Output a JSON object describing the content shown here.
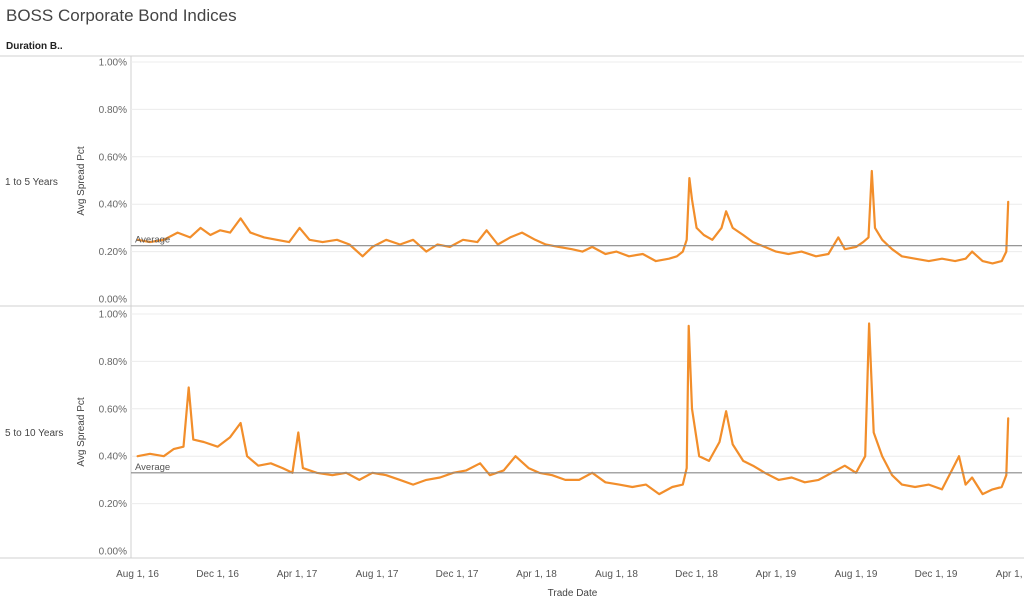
{
  "title": "BOSS Corporate Bond Indices",
  "header_label": "Duration B..",
  "chart_data": {
    "type": "line",
    "title": "BOSS Corporate Bond Indices",
    "xlabel": "Trade Date",
    "ylabel": "Avg Spread Pct",
    "x_ticks": [
      "Aug 1, 16",
      "Dec 1, 16",
      "Apr 1, 17",
      "Aug 1, 17",
      "Dec 1, 17",
      "Apr 1, 18",
      "Aug 1, 18",
      "Dec 1, 18",
      "Apr 1, 19",
      "Aug 1, 19",
      "Dec 1, 19",
      "Apr 1, 20"
    ],
    "xlim": [
      "2016-07-22",
      "2020-04-10"
    ],
    "y_ticks": [
      "0.00%",
      "0.20%",
      "0.40%",
      "0.60%",
      "0.80%",
      "1.00%"
    ],
    "ylim": [
      0,
      1.0
    ],
    "average_label": "Average",
    "line_color": "#f28e2b",
    "grid": true,
    "panels": [
      {
        "name": "1 to 5 Years",
        "average": 0.225,
        "points": [
          [
            "2016-08-01",
            0.25
          ],
          [
            "2016-08-20",
            0.24
          ],
          [
            "2016-09-10",
            0.25
          ],
          [
            "2016-10-01",
            0.28
          ],
          [
            "2016-10-20",
            0.26
          ],
          [
            "2016-11-05",
            0.3
          ],
          [
            "2016-11-20",
            0.27
          ],
          [
            "2016-12-05",
            0.29
          ],
          [
            "2016-12-20",
            0.28
          ],
          [
            "2017-01-05",
            0.34
          ],
          [
            "2017-01-20",
            0.28
          ],
          [
            "2017-02-10",
            0.26
          ],
          [
            "2017-03-01",
            0.25
          ],
          [
            "2017-03-20",
            0.24
          ],
          [
            "2017-04-05",
            0.3
          ],
          [
            "2017-04-20",
            0.25
          ],
          [
            "2017-05-10",
            0.24
          ],
          [
            "2017-06-01",
            0.25
          ],
          [
            "2017-06-20",
            0.23
          ],
          [
            "2017-07-10",
            0.18
          ],
          [
            "2017-07-25",
            0.22
          ],
          [
            "2017-08-15",
            0.25
          ],
          [
            "2017-09-05",
            0.23
          ],
          [
            "2017-09-25",
            0.25
          ],
          [
            "2017-10-15",
            0.2
          ],
          [
            "2017-11-01",
            0.23
          ],
          [
            "2017-11-20",
            0.22
          ],
          [
            "2017-12-10",
            0.25
          ],
          [
            "2018-01-01",
            0.24
          ],
          [
            "2018-01-15",
            0.29
          ],
          [
            "2018-02-01",
            0.23
          ],
          [
            "2018-02-20",
            0.26
          ],
          [
            "2018-03-10",
            0.28
          ],
          [
            "2018-03-30",
            0.25
          ],
          [
            "2018-04-15",
            0.23
          ],
          [
            "2018-05-05",
            0.22
          ],
          [
            "2018-05-25",
            0.21
          ],
          [
            "2018-06-10",
            0.2
          ],
          [
            "2018-06-25",
            0.22
          ],
          [
            "2018-07-15",
            0.19
          ],
          [
            "2018-08-01",
            0.2
          ],
          [
            "2018-08-20",
            0.18
          ],
          [
            "2018-09-10",
            0.19
          ],
          [
            "2018-09-30",
            0.16
          ],
          [
            "2018-10-20",
            0.17
          ],
          [
            "2018-11-01",
            0.18
          ],
          [
            "2018-11-10",
            0.2
          ],
          [
            "2018-11-16",
            0.25
          ],
          [
            "2018-11-20",
            0.51
          ],
          [
            "2018-11-24",
            0.42
          ],
          [
            "2018-12-01",
            0.3
          ],
          [
            "2018-12-12",
            0.27
          ],
          [
            "2018-12-25",
            0.25
          ],
          [
            "2019-01-08",
            0.3
          ],
          [
            "2019-01-15",
            0.37
          ],
          [
            "2019-01-25",
            0.3
          ],
          [
            "2019-02-10",
            0.27
          ],
          [
            "2019-02-25",
            0.24
          ],
          [
            "2019-03-15",
            0.22
          ],
          [
            "2019-04-01",
            0.2
          ],
          [
            "2019-04-20",
            0.19
          ],
          [
            "2019-05-10",
            0.2
          ],
          [
            "2019-06-01",
            0.18
          ],
          [
            "2019-06-20",
            0.19
          ],
          [
            "2019-07-05",
            0.26
          ],
          [
            "2019-07-15",
            0.21
          ],
          [
            "2019-08-01",
            0.22
          ],
          [
            "2019-08-12",
            0.24
          ],
          [
            "2019-08-20",
            0.26
          ],
          [
            "2019-08-25",
            0.54
          ],
          [
            "2019-08-30",
            0.3
          ],
          [
            "2019-09-10",
            0.25
          ],
          [
            "2019-09-25",
            0.21
          ],
          [
            "2019-10-10",
            0.18
          ],
          [
            "2019-10-30",
            0.17
          ],
          [
            "2019-11-20",
            0.16
          ],
          [
            "2019-12-10",
            0.17
          ],
          [
            "2019-12-30",
            0.16
          ],
          [
            "2020-01-15",
            0.17
          ],
          [
            "2020-01-25",
            0.2
          ],
          [
            "2020-02-10",
            0.16
          ],
          [
            "2020-02-25",
            0.15
          ],
          [
            "2020-03-10",
            0.16
          ],
          [
            "2020-03-17",
            0.2
          ],
          [
            "2020-03-20",
            0.41
          ]
        ]
      },
      {
        "name": "5 to 10 Years",
        "average": 0.33,
        "points": [
          [
            "2016-08-01",
            0.4
          ],
          [
            "2016-08-20",
            0.41
          ],
          [
            "2016-09-10",
            0.4
          ],
          [
            "2016-09-25",
            0.43
          ],
          [
            "2016-10-10",
            0.44
          ],
          [
            "2016-10-18",
            0.69
          ],
          [
            "2016-10-25",
            0.47
          ],
          [
            "2016-11-10",
            0.46
          ],
          [
            "2016-12-01",
            0.44
          ],
          [
            "2016-12-20",
            0.48
          ],
          [
            "2017-01-05",
            0.54
          ],
          [
            "2017-01-15",
            0.4
          ],
          [
            "2017-02-01",
            0.36
          ],
          [
            "2017-02-20",
            0.37
          ],
          [
            "2017-03-10",
            0.35
          ],
          [
            "2017-03-25",
            0.33
          ],
          [
            "2017-04-03",
            0.5
          ],
          [
            "2017-04-10",
            0.35
          ],
          [
            "2017-05-01",
            0.33
          ],
          [
            "2017-05-25",
            0.32
          ],
          [
            "2017-06-15",
            0.33
          ],
          [
            "2017-07-05",
            0.3
          ],
          [
            "2017-07-25",
            0.33
          ],
          [
            "2017-08-15",
            0.32
          ],
          [
            "2017-09-05",
            0.3
          ],
          [
            "2017-09-25",
            0.28
          ],
          [
            "2017-10-15",
            0.3
          ],
          [
            "2017-11-05",
            0.31
          ],
          [
            "2017-11-25",
            0.33
          ],
          [
            "2017-12-15",
            0.34
          ],
          [
            "2018-01-05",
            0.37
          ],
          [
            "2018-01-20",
            0.32
          ],
          [
            "2018-02-10",
            0.34
          ],
          [
            "2018-02-28",
            0.4
          ],
          [
            "2018-03-20",
            0.35
          ],
          [
            "2018-04-05",
            0.33
          ],
          [
            "2018-04-25",
            0.32
          ],
          [
            "2018-05-15",
            0.3
          ],
          [
            "2018-06-05",
            0.3
          ],
          [
            "2018-06-25",
            0.33
          ],
          [
            "2018-07-15",
            0.29
          ],
          [
            "2018-08-05",
            0.28
          ],
          [
            "2018-08-25",
            0.27
          ],
          [
            "2018-09-15",
            0.28
          ],
          [
            "2018-10-05",
            0.24
          ],
          [
            "2018-10-25",
            0.27
          ],
          [
            "2018-11-10",
            0.28
          ],
          [
            "2018-11-16",
            0.35
          ],
          [
            "2018-11-19",
            0.95
          ],
          [
            "2018-11-24",
            0.6
          ],
          [
            "2018-12-05",
            0.4
          ],
          [
            "2018-12-20",
            0.38
          ],
          [
            "2019-01-05",
            0.46
          ],
          [
            "2019-01-15",
            0.59
          ],
          [
            "2019-01-25",
            0.45
          ],
          [
            "2019-02-10",
            0.38
          ],
          [
            "2019-02-25",
            0.36
          ],
          [
            "2019-03-15",
            0.33
          ],
          [
            "2019-04-05",
            0.3
          ],
          [
            "2019-04-25",
            0.31
          ],
          [
            "2019-05-15",
            0.29
          ],
          [
            "2019-06-05",
            0.3
          ],
          [
            "2019-06-25",
            0.33
          ],
          [
            "2019-07-15",
            0.36
          ],
          [
            "2019-08-01",
            0.33
          ],
          [
            "2019-08-15",
            0.4
          ],
          [
            "2019-08-21",
            0.96
          ],
          [
            "2019-08-28",
            0.5
          ],
          [
            "2019-09-10",
            0.4
          ],
          [
            "2019-09-25",
            0.32
          ],
          [
            "2019-10-10",
            0.28
          ],
          [
            "2019-10-30",
            0.27
          ],
          [
            "2019-11-20",
            0.28
          ],
          [
            "2019-12-10",
            0.26
          ],
          [
            "2019-12-25",
            0.34
          ],
          [
            "2020-01-05",
            0.4
          ],
          [
            "2020-01-15",
            0.28
          ],
          [
            "2020-01-25",
            0.31
          ],
          [
            "2020-02-10",
            0.24
          ],
          [
            "2020-02-25",
            0.26
          ],
          [
            "2020-03-10",
            0.27
          ],
          [
            "2020-03-17",
            0.32
          ],
          [
            "2020-03-20",
            0.56
          ]
        ]
      }
    ]
  }
}
